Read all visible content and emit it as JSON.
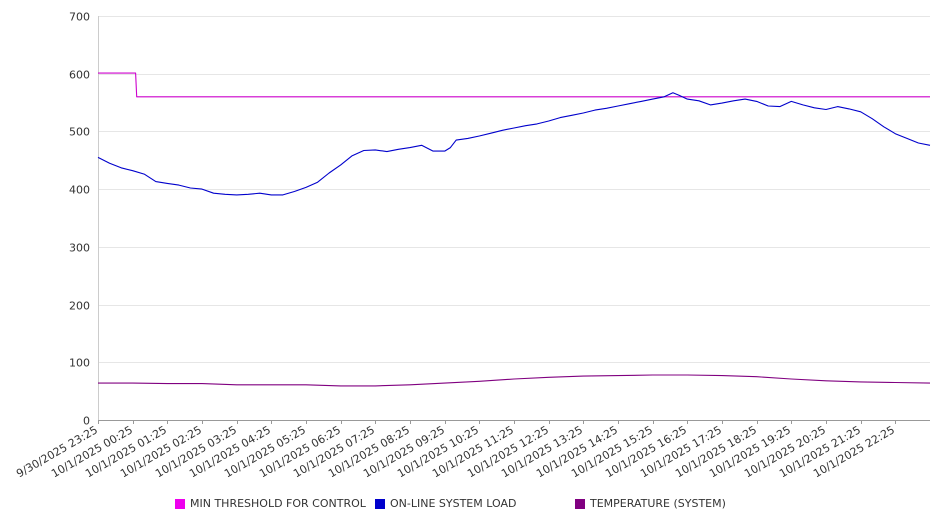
{
  "chart_data": {
    "type": "line",
    "title": "",
    "xlabel": "",
    "ylabel": "",
    "ylim": [
      0,
      700
    ],
    "y_ticks": [
      "0",
      "100",
      "200",
      "300",
      "400",
      "500",
      "600",
      "700"
    ],
    "x_ticks": [
      "9/30/2025 23:25",
      "10/1/2025 00:25",
      "10/1/2025 01:25",
      "10/1/2025 02:25",
      "10/1/2025 03:25",
      "10/1/2025 04:25",
      "10/1/2025 05:25",
      "10/1/2025 06:25",
      "10/1/2025 07:25",
      "10/1/2025 08:25",
      "10/1/2025 09:25",
      "10/1/2025 10:25",
      "10/1/2025 11:25",
      "10/1/2025 12:25",
      "10/1/2025 13:25",
      "10/1/2025 14:25",
      "10/1/2025 15:25",
      "10/1/2025 16:25",
      "10/1/2025 17:25",
      "10/1/2025 18:25",
      "10/1/2025 19:25",
      "10/1/2025 20:25",
      "10/1/2025 21:25",
      "10/1/2025 22:25"
    ],
    "grid": true,
    "legend_position": "bottom",
    "series": [
      {
        "name": "MIN THRESHOLD FOR CONTROL",
        "color": "#cc00cc",
        "points": [
          [
            "9/30/2025 23:25",
            601
          ],
          [
            "10/1/2025 00:25",
            601
          ],
          [
            "10/1/2025 00:30",
            601
          ],
          [
            "10/1/2025 00:32",
            560
          ],
          [
            "10/1/2025 23:25",
            560
          ]
        ]
      },
      {
        "name": "ON-LINE SYSTEM LOAD",
        "color": "#0000cc",
        "points": [
          [
            "9/30/2025 23:25",
            455
          ],
          [
            "9/30/2025 23:45",
            445
          ],
          [
            "10/1/2025 00:05",
            437
          ],
          [
            "10/1/2025 00:25",
            432
          ],
          [
            "10/1/2025 00:45",
            426
          ],
          [
            "10/1/2025 01:05",
            413
          ],
          [
            "10/1/2025 01:25",
            410
          ],
          [
            "10/1/2025 01:45",
            407
          ],
          [
            "10/1/2025 02:05",
            402
          ],
          [
            "10/1/2025 02:25",
            400
          ],
          [
            "10/1/2025 02:45",
            393
          ],
          [
            "10/1/2025 03:05",
            391
          ],
          [
            "10/1/2025 03:25",
            390
          ],
          [
            "10/1/2025 03:45",
            391
          ],
          [
            "10/1/2025 04:05",
            393
          ],
          [
            "10/1/2025 04:25",
            390
          ],
          [
            "10/1/2025 04:45",
            390
          ],
          [
            "10/1/2025 05:05",
            396
          ],
          [
            "10/1/2025 05:25",
            403
          ],
          [
            "10/1/2025 05:45",
            412
          ],
          [
            "10/1/2025 06:05",
            428
          ],
          [
            "10/1/2025 06:25",
            442
          ],
          [
            "10/1/2025 06:45",
            458
          ],
          [
            "10/1/2025 07:05",
            467
          ],
          [
            "10/1/2025 07:25",
            468
          ],
          [
            "10/1/2025 07:45",
            465
          ],
          [
            "10/1/2025 08:05",
            469
          ],
          [
            "10/1/2025 08:25",
            472
          ],
          [
            "10/1/2025 08:45",
            476
          ],
          [
            "10/1/2025 09:05",
            466
          ],
          [
            "10/1/2025 09:25",
            466
          ],
          [
            "10/1/2025 09:35",
            472
          ],
          [
            "10/1/2025 09:45",
            485
          ],
          [
            "10/1/2025 10:05",
            488
          ],
          [
            "10/1/2025 10:25",
            492
          ],
          [
            "10/1/2025 10:45",
            497
          ],
          [
            "10/1/2025 11:05",
            502
          ],
          [
            "10/1/2025 11:25",
            506
          ],
          [
            "10/1/2025 11:45",
            510
          ],
          [
            "10/1/2025 12:05",
            513
          ],
          [
            "10/1/2025 12:25",
            518
          ],
          [
            "10/1/2025 12:45",
            524
          ],
          [
            "10/1/2025 13:05",
            528
          ],
          [
            "10/1/2025 13:25",
            532
          ],
          [
            "10/1/2025 13:45",
            537
          ],
          [
            "10/1/2025 14:05",
            540
          ],
          [
            "10/1/2025 14:25",
            544
          ],
          [
            "10/1/2025 14:45",
            548
          ],
          [
            "10/1/2025 15:05",
            552
          ],
          [
            "10/1/2025 15:25",
            556
          ],
          [
            "10/1/2025 15:45",
            560
          ],
          [
            "10/1/2025 16:00",
            567
          ],
          [
            "10/1/2025 16:10",
            563
          ],
          [
            "10/1/2025 16:25",
            556
          ],
          [
            "10/1/2025 16:45",
            553
          ],
          [
            "10/1/2025 17:05",
            546
          ],
          [
            "10/1/2025 17:25",
            549
          ],
          [
            "10/1/2025 17:45",
            553
          ],
          [
            "10/1/2025 18:05",
            556
          ],
          [
            "10/1/2025 18:25",
            552
          ],
          [
            "10/1/2025 18:45",
            544
          ],
          [
            "10/1/2025 19:05",
            543
          ],
          [
            "10/1/2025 19:25",
            552
          ],
          [
            "10/1/2025 19:45",
            546
          ],
          [
            "10/1/2025 20:05",
            541
          ],
          [
            "10/1/2025 20:25",
            538
          ],
          [
            "10/1/2025 20:45",
            543
          ],
          [
            "10/1/2025 21:05",
            539
          ],
          [
            "10/1/2025 21:25",
            534
          ],
          [
            "10/1/2025 21:45",
            522
          ],
          [
            "10/1/2025 22:05",
            508
          ],
          [
            "10/1/2025 22:25",
            496
          ],
          [
            "10/1/2025 22:45",
            488
          ],
          [
            "10/1/2025 23:05",
            480
          ],
          [
            "10/1/2025 23:25",
            476
          ]
        ]
      },
      {
        "name": "TEMPERATURE (SYSTEM)",
        "color": "#800080",
        "points": [
          [
            "9/30/2025 23:25",
            64
          ],
          [
            "10/1/2025 00:25",
            64
          ],
          [
            "10/1/2025 01:25",
            63
          ],
          [
            "10/1/2025 02:25",
            63
          ],
          [
            "10/1/2025 03:25",
            61
          ],
          [
            "10/1/2025 04:25",
            61
          ],
          [
            "10/1/2025 05:25",
            61
          ],
          [
            "10/1/2025 06:25",
            59
          ],
          [
            "10/1/2025 07:25",
            59
          ],
          [
            "10/1/2025 08:25",
            61
          ],
          [
            "10/1/2025 09:25",
            64
          ],
          [
            "10/1/2025 10:25",
            67
          ],
          [
            "10/1/2025 11:25",
            71
          ],
          [
            "10/1/2025 12:25",
            74
          ],
          [
            "10/1/2025 13:25",
            76
          ],
          [
            "10/1/2025 14:25",
            77
          ],
          [
            "10/1/2025 15:25",
            78
          ],
          [
            "10/1/2025 16:25",
            78
          ],
          [
            "10/1/2025 17:25",
            77
          ],
          [
            "10/1/2025 18:25",
            75
          ],
          [
            "10/1/2025 19:25",
            71
          ],
          [
            "10/1/2025 20:25",
            68
          ],
          [
            "10/1/2025 21:25",
            66
          ],
          [
            "10/1/2025 22:25",
            65
          ],
          [
            "10/1/2025 23:25",
            64
          ]
        ]
      }
    ]
  }
}
